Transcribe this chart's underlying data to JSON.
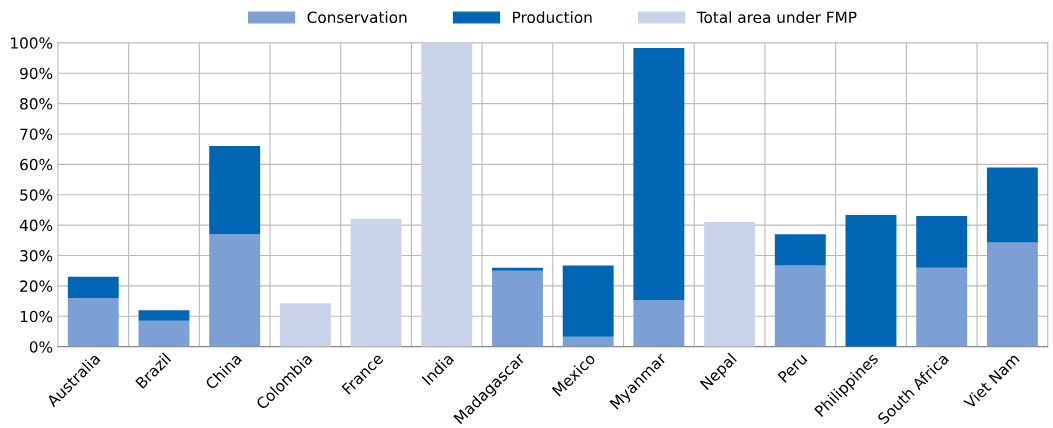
{
  "chart_data": {
    "type": "bar",
    "stacked": true,
    "categories": [
      "Australia",
      "Brazil",
      "China",
      "Colombia",
      "France",
      "India",
      "Madagascar",
      "Mexico",
      "Myanmar",
      "Nepal",
      "Peru",
      "Philippines",
      "South Africa",
      "Viet Nam"
    ],
    "series": [
      {
        "name": "Conservation",
        "color": "#7c9fd4",
        "values": [
          16,
          8.5,
          37,
          null,
          null,
          null,
          25,
          3.3,
          15.3,
          null,
          26.7,
          null,
          26,
          34.3
        ]
      },
      {
        "name": "Production",
        "color": "#0066b3",
        "values": [
          7,
          3.5,
          29,
          null,
          null,
          null,
          1,
          23.4,
          83,
          null,
          10.3,
          43.3,
          17,
          24.7
        ]
      },
      {
        "name": "Total area under FMP",
        "color": "#c8d3ea",
        "values": [
          null,
          null,
          null,
          14.3,
          42,
          100,
          null,
          null,
          null,
          41,
          null,
          null,
          null,
          null
        ]
      }
    ],
    "ylim": [
      0,
      100
    ],
    "yticks": [
      {
        "value": 0,
        "label": "0%"
      },
      {
        "value": 10,
        "label": "10%"
      },
      {
        "value": 20,
        "label": "20%"
      },
      {
        "value": 30,
        "label": "30%"
      },
      {
        "value": 40,
        "label": "40%"
      },
      {
        "value": 50,
        "label": "50%"
      },
      {
        "value": 60,
        "label": "60%"
      },
      {
        "value": 70,
        "label": "70%"
      },
      {
        "value": 80,
        "label": "80%"
      },
      {
        "value": 90,
        "label": "90%"
      },
      {
        "value": 100,
        "label": "100%"
      }
    ],
    "grid": true,
    "legend": "top"
  }
}
